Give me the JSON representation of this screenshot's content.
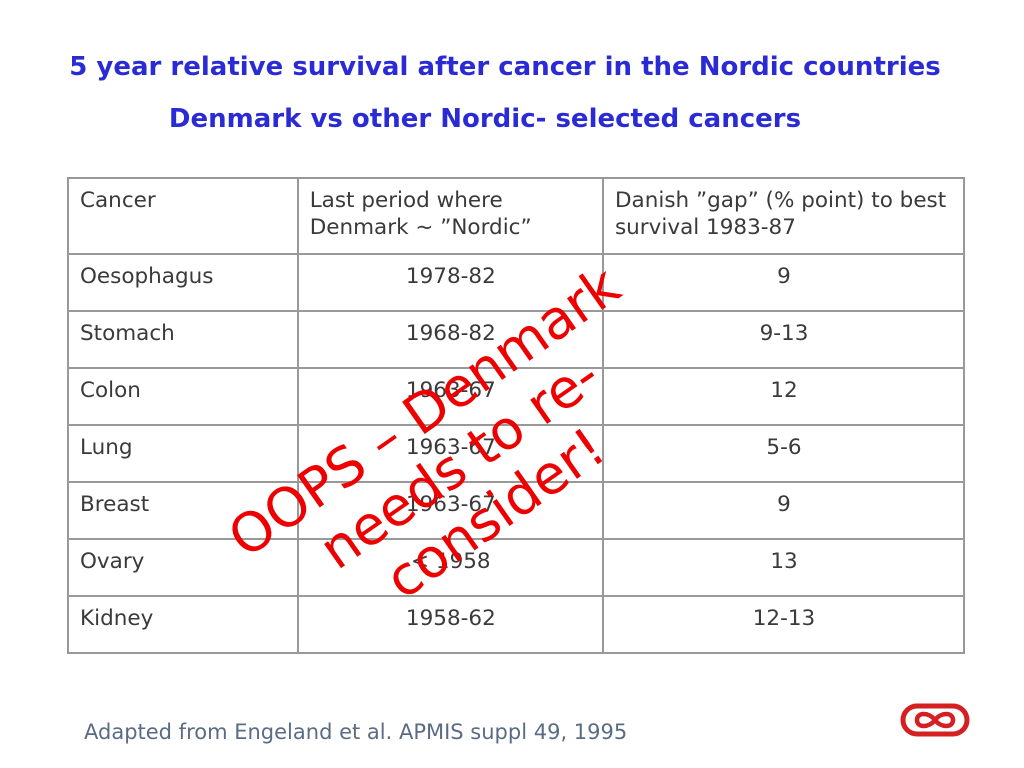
{
  "slide": {
    "title_line1": "5 year relative survival after cancer in the Nordic countries",
    "title_line2": "Denmark vs other Nordic- selected cancers",
    "source": "Adapted from Engeland et al. APMIS suppl 49, 1995",
    "stamp_lines": [
      "OOPS – Denmark",
      "needs to re-",
      "consider!"
    ],
    "logo_icon": "infinity-logo-icon",
    "colors": {
      "title": "#2b2bd6",
      "stamp": "#ee0000",
      "border": "#999999",
      "logo": "#d42020"
    }
  },
  "table": {
    "headers": [
      "Cancer",
      "Last period where Denmark ~ ”Nordic”",
      "Danish ”gap” (% point) to best survival 1983-87"
    ],
    "rows": [
      [
        "Oesophagus",
        "1978-82",
        "9"
      ],
      [
        "Stomach",
        "1968-82",
        "9-13"
      ],
      [
        "Colon",
        "1963-67",
        "12"
      ],
      [
        "Lung",
        "1963-67",
        "5-6"
      ],
      [
        "Breast",
        "1963-67",
        "9"
      ],
      [
        "Ovary",
        "< 1958",
        "13"
      ],
      [
        "Kidney",
        "1958-62",
        "12-13"
      ]
    ]
  }
}
